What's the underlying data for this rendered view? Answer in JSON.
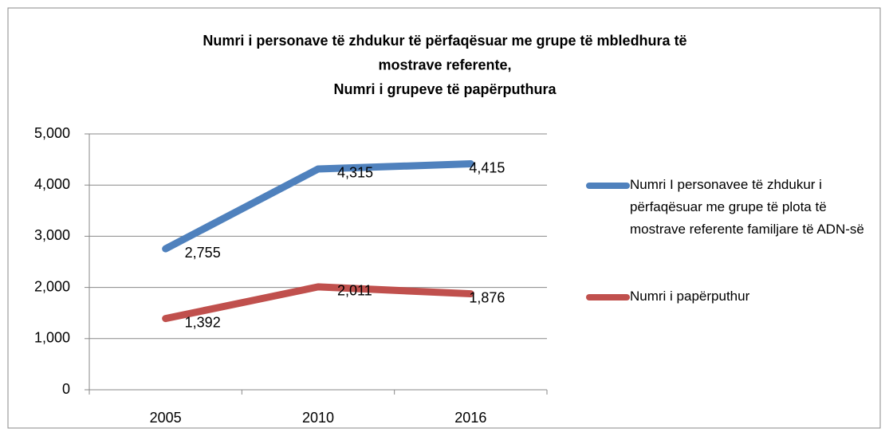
{
  "chart_data": {
    "type": "line",
    "title": [
      "Numri i personave të zhdukur të përfaqësuar me grupe të mbledhura të",
      "mostrave referente,",
      "Numri i grupeve të papërputhura"
    ],
    "categories": [
      "2005",
      "2010",
      "2016"
    ],
    "series": [
      {
        "name": "Numri I personavee të zhdukur i përfaqësuar me grupe të plota të mostrave referente familjare të ADN-së",
        "color": "#4f81bd",
        "values": [
          2755,
          4315,
          4415
        ],
        "value_labels": [
          "2,755",
          "4,315",
          "4,415"
        ]
      },
      {
        "name": "Numri i papërputhur",
        "color": "#c0504d",
        "values": [
          1392,
          2011,
          1876
        ],
        "value_labels": [
          "1,392",
          "2,011",
          "1,876"
        ]
      }
    ],
    "ylim": [
      0,
      5000
    ],
    "yticks": [
      0,
      {
        "value": 1000,
        "label": "1,000"
      },
      {
        "value": 2000,
        "label": "2,000"
      },
      {
        "value": 3000,
        "label": "3,000"
      },
      {
        "value": 4000,
        "label": "4,000"
      },
      {
        "value": 5000,
        "label": "5,000"
      }
    ],
    "grid": true,
    "legend": "right"
  }
}
